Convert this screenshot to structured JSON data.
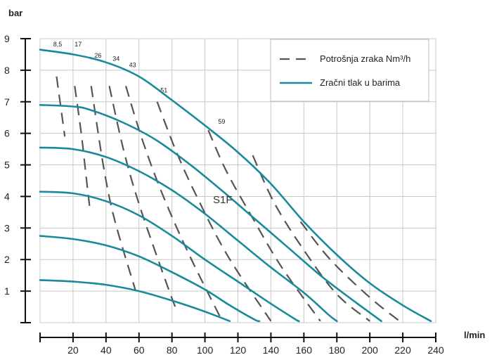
{
  "chart_data": {
    "type": "line",
    "title": "",
    "xlabel": "l/min",
    "ylabel": "bar",
    "xlim": [
      0,
      240
    ],
    "ylim": [
      0,
      9
    ],
    "x_ticks": [
      "20",
      "40",
      "60",
      "80",
      "100",
      "120",
      "140",
      "160",
      "180",
      "200",
      "220",
      "240"
    ],
    "y_ticks": [
      "1",
      "2",
      "3",
      "4",
      "5",
      "6",
      "7",
      "8",
      "9"
    ],
    "grid": true,
    "legend_position": "top-right",
    "model_label": "S1F",
    "colors": {
      "pressure": "#1a8a9a",
      "consumption": "#555555"
    },
    "legend": [
      {
        "label": "Potrošnja zraka Nm³/h",
        "style": "dashed",
        "color": "#555555"
      },
      {
        "label": "Zračni tlak u barima",
        "style": "solid",
        "color": "#1a8a9a"
      }
    ],
    "series": [
      {
        "name": "Zračni tlak u barima",
        "air_pressure_bar": 8.6,
        "points": [
          [
            0,
            8.65
          ],
          [
            20,
            8.5
          ],
          [
            40,
            8.25
          ],
          [
            60,
            7.8
          ],
          [
            80,
            7.05
          ],
          [
            100,
            6.25
          ],
          [
            120,
            5.4
          ],
          [
            140,
            4.4
          ],
          [
            160,
            3.2
          ],
          [
            180,
            2.15
          ],
          [
            200,
            1.25
          ],
          [
            220,
            0.55
          ],
          [
            237,
            0.05
          ]
        ]
      },
      {
        "name": "Zračni tlak u barima",
        "air_pressure_bar": 6.9,
        "points": [
          [
            0,
            6.9
          ],
          [
            20,
            6.85
          ],
          [
            30,
            6.75
          ],
          [
            50,
            6.35
          ],
          [
            70,
            5.8
          ],
          [
            90,
            5.05
          ],
          [
            110,
            4.2
          ],
          [
            130,
            3.3
          ],
          [
            150,
            2.4
          ],
          [
            170,
            1.5
          ],
          [
            190,
            0.7
          ],
          [
            207,
            0.05
          ]
        ]
      },
      {
        "name": "Zračni tlak u barima",
        "air_pressure_bar": 5.5,
        "points": [
          [
            0,
            5.55
          ],
          [
            20,
            5.5
          ],
          [
            40,
            5.25
          ],
          [
            60,
            4.8
          ],
          [
            80,
            4.2
          ],
          [
            100,
            3.45
          ],
          [
            120,
            2.6
          ],
          [
            140,
            1.75
          ],
          [
            160,
            0.95
          ],
          [
            175,
            0.25
          ],
          [
            180,
            0.05
          ]
        ]
      },
      {
        "name": "Zračni tlak u barima",
        "air_pressure_bar": 4.1,
        "points": [
          [
            0,
            4.15
          ],
          [
            20,
            4.1
          ],
          [
            40,
            3.85
          ],
          [
            60,
            3.4
          ],
          [
            80,
            2.75
          ],
          [
            100,
            2.0
          ],
          [
            120,
            1.3
          ],
          [
            140,
            0.6
          ],
          [
            155,
            0.1
          ],
          [
            157,
            0.05
          ]
        ]
      },
      {
        "name": "Zračni tlak u barima",
        "air_pressure_bar": 2.8,
        "points": [
          [
            0,
            2.75
          ],
          [
            20,
            2.65
          ],
          [
            40,
            2.45
          ],
          [
            60,
            2.1
          ],
          [
            80,
            1.6
          ],
          [
            100,
            1.05
          ],
          [
            115,
            0.55
          ],
          [
            130,
            0.1
          ],
          [
            133,
            0.05
          ]
        ]
      },
      {
        "name": "Zračni tlak u barima",
        "air_pressure_bar": 1.4,
        "points": [
          [
            0,
            1.35
          ],
          [
            20,
            1.3
          ],
          [
            40,
            1.2
          ],
          [
            60,
            1.0
          ],
          [
            80,
            0.7
          ],
          [
            100,
            0.35
          ],
          [
            115,
            0.05
          ]
        ]
      }
    ],
    "air_consumption_curves": [
      {
        "label": "8,5",
        "label_at": [
          8,
          8.75
        ],
        "points": [
          [
            10,
            7.8
          ],
          [
            15,
            5.9
          ]
        ]
      },
      {
        "label": "17",
        "label_at": [
          21,
          8.75
        ],
        "points": [
          [
            21,
            7.5
          ],
          [
            25,
            6.0
          ],
          [
            28,
            4.6
          ],
          [
            30,
            3.7
          ]
        ]
      },
      {
        "label": "26",
        "label_at": [
          33,
          8.4
        ],
        "points": [
          [
            31,
            7.5
          ],
          [
            38,
            5.1
          ],
          [
            45,
            3.3
          ],
          [
            58,
            1.0
          ]
        ]
      },
      {
        "label": "34",
        "label_at": [
          44,
          8.3
        ],
        "points": [
          [
            42,
            7.5
          ],
          [
            51,
            5.4
          ],
          [
            61,
            3.6
          ],
          [
            77,
            1.2
          ],
          [
            82,
            0.5
          ]
        ]
      },
      {
        "label": "43",
        "label_at": [
          54,
          8.1
        ],
        "points": [
          [
            52,
            7.5
          ],
          [
            62,
            5.8
          ],
          [
            74,
            4.1
          ],
          [
            90,
            2.2
          ],
          [
            110,
            0.1
          ]
        ]
      },
      {
        "label": "51",
        "label_at": [
          73,
          7.3
        ],
        "points": [
          [
            71,
            7.0
          ],
          [
            82,
            5.5
          ],
          [
            95,
            4.0
          ],
          [
            114,
            2.1
          ],
          [
            140,
            0.05
          ]
        ]
      },
      {
        "label": "59",
        "label_at": [
          108,
          6.3
        ],
        "points": [
          [
            102,
            6.1
          ],
          [
            113,
            4.8
          ],
          [
            128,
            3.4
          ],
          [
            146,
            1.8
          ],
          [
            170,
            0.05
          ]
        ]
      },
      {
        "label": "",
        "label_at": null,
        "points": [
          [
            129,
            5.3
          ],
          [
            142,
            3.8
          ],
          [
            160,
            2.3
          ],
          [
            180,
            0.9
          ],
          [
            200,
            0.05
          ]
        ]
      },
      {
        "label": "",
        "label_at": null,
        "points": [
          [
            158,
            3.2
          ],
          [
            176,
            2.0
          ],
          [
            200,
            0.8
          ],
          [
            218,
            0.05
          ]
        ]
      }
    ]
  }
}
